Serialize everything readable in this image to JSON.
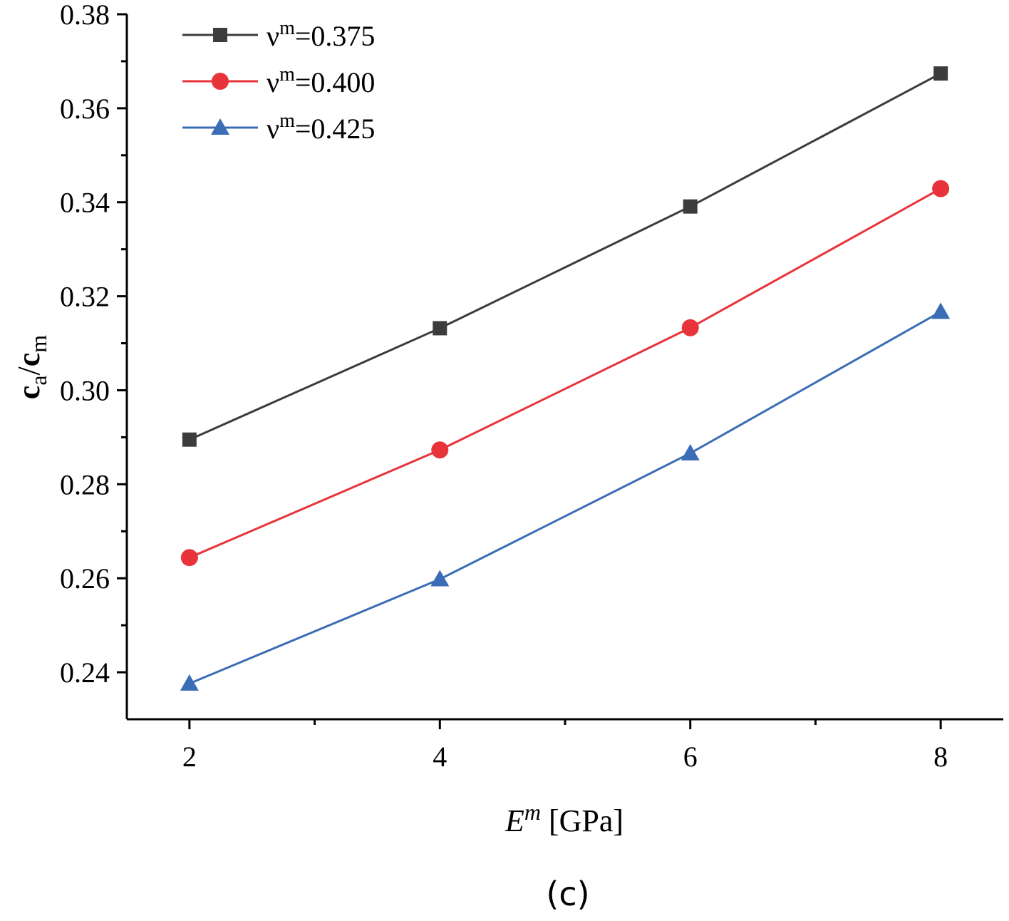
{
  "chart_data": {
    "type": "line",
    "title": "",
    "x": [
      2,
      4,
      6,
      8
    ],
    "xticks": [
      "2",
      "4",
      "6",
      "8"
    ],
    "xlim": [
      1.5,
      8.5
    ],
    "ylim": [
      0.23,
      0.38
    ],
    "yticks": [
      "0.24",
      "0.26",
      "0.28",
      "0.30",
      "0.32",
      "0.34",
      "0.36",
      "0.38"
    ],
    "ylabel": {
      "base": "c",
      "sub1": "a",
      "slash": "/",
      "base2": "c",
      "sub2": "m"
    },
    "xlabel": {
      "var": "E",
      "sup": "m",
      "unit": " [GPa]"
    },
    "panel_label": "(c)",
    "legend_position": "top-left",
    "series": [
      {
        "name": "ν",
        "sup": "m",
        "value_text": "=0.375",
        "marker": "square",
        "color": "#3c3c3c",
        "values": [
          0.2895,
          0.3132,
          0.3391,
          0.3674
        ]
      },
      {
        "name": "ν",
        "sup": "m",
        "value_text": "=0.400",
        "marker": "circle",
        "color": "#e8333a",
        "values": [
          0.2644,
          0.2873,
          0.3133,
          0.3429
        ]
      },
      {
        "name": "ν",
        "sup": "m",
        "value_text": "=0.425",
        "marker": "triangle",
        "color": "#3a6db5",
        "values": [
          0.2376,
          0.2598,
          0.2866,
          0.3167
        ]
      }
    ]
  }
}
